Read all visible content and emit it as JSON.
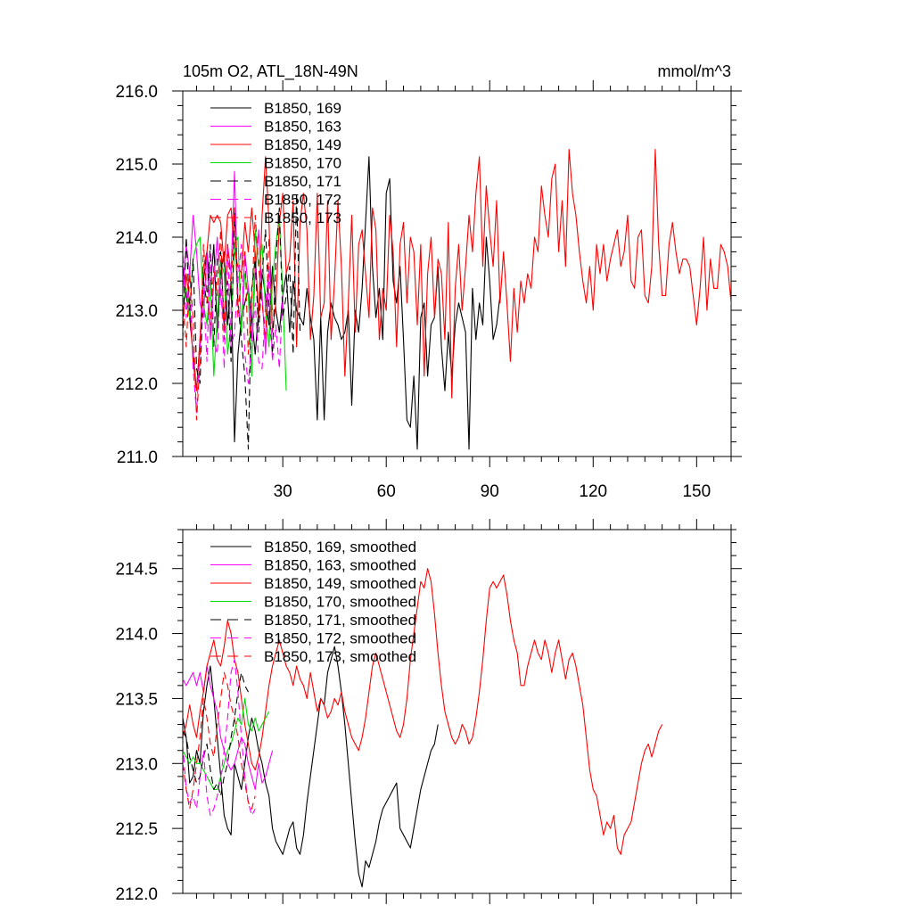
{
  "chart_data": [
    {
      "type": "line",
      "title": "105m O2, ATL_18N-49N",
      "units": "mmol/m^3",
      "xlim": [
        1,
        160
      ],
      "ylim": [
        211.0,
        216.0
      ],
      "xticks": [
        30,
        60,
        90,
        120,
        150
      ],
      "yticks": [
        211.0,
        212.0,
        213.0,
        214.0,
        215.0,
        216.0
      ],
      "yticks_decimals": 1,
      "show_xtick_labels": true,
      "series": [
        {
          "name": "B1850, 169",
          "color": "#000000",
          "dash": "",
          "x_start": 1,
          "values": [
            213.6,
            213.2,
            212.9,
            212.4,
            211.9,
            212.6,
            213.4,
            213.8,
            213.3,
            213.9,
            212.7,
            213.5,
            213.8,
            212.8,
            213.4,
            211.2,
            212.4,
            212.9,
            213.1,
            213.3,
            212.9,
            212.4,
            213.0,
            213.5,
            213.2,
            212.8,
            213.6,
            213.0,
            212.7,
            213.2,
            213.5,
            212.7,
            213.4,
            213.0,
            212.9,
            212.8,
            213.3,
            212.9,
            212.6,
            211.5,
            212.9,
            211.5,
            212.7,
            213.1,
            212.9,
            212.8,
            212.6,
            212.7,
            213.0,
            211.7,
            213.0,
            212.7,
            213.3,
            214.2,
            215.1,
            213.6,
            212.9,
            213.3,
            212.6,
            214.6,
            214.8,
            213.4,
            213.1,
            213.6,
            212.6,
            211.5,
            211.4,
            212.1,
            211.1,
            212.9,
            213.1,
            212.1,
            212.8,
            212.9,
            213.6,
            212.5,
            211.9,
            212.7,
            212.1,
            212.8,
            213.1,
            212.9,
            212.7,
            211.1,
            213.3,
            212.6,
            213.1,
            212.8,
            214.0,
            213.4,
            212.6,
            212.8,
            213.2
          ]
        },
        {
          "name": "B1850, 163",
          "color": "#ff00ff",
          "dash": "",
          "x_start": 1,
          "values": [
            213.2,
            213.9,
            213.5,
            214.3,
            213.8,
            213.1,
            212.9,
            213.8,
            212.6,
            213.4,
            214.0,
            213.2,
            212.8,
            213.9,
            213.5,
            214.9,
            213.1,
            212.7,
            213.8,
            213.3,
            212.6,
            213.5,
            214.1,
            213.2,
            212.4,
            213.6,
            213.0
          ]
        },
        {
          "name": "B1850, 149",
          "color": "#ff0000",
          "dash": "",
          "x_start": 1,
          "values": [
            212.8,
            213.5,
            213.1,
            212.3,
            211.9,
            212.6,
            213.6,
            213.8,
            214.3,
            214.2,
            214.3,
            214.2,
            213.6,
            214.3,
            214.4,
            213.8,
            213.6,
            213.5,
            214.2,
            213.8,
            214.4,
            213.8,
            212.9,
            214.3,
            215.1,
            214.2,
            212.7,
            213.1,
            214.2,
            214.6,
            213.5,
            213.7,
            214.5,
            212.5,
            214.2,
            214.6,
            214.1,
            212.6,
            213.2,
            214.6,
            212.9,
            213.1,
            214.5,
            212.6,
            213.4,
            214.5,
            213.6,
            212.1,
            213.1,
            214.3,
            212.7,
            213.9,
            214.1,
            213.5,
            212.9,
            214.4,
            214.1,
            212.6,
            213.3,
            213.0,
            214.3,
            213.8,
            212.5,
            213.9,
            214.2,
            213.1,
            214.0,
            213.8,
            212.8,
            213.9,
            212.1,
            213.5,
            214.0,
            212.9,
            213.7,
            213.5,
            212.6,
            214.2,
            211.8,
            213.3,
            213.9,
            213.0,
            213.6,
            214.3,
            213.8,
            214.6,
            215.1,
            213.6,
            214.7,
            214.1,
            213.6,
            214.5,
            213.1,
            213.8,
            213.1,
            212.3,
            213.3,
            212.7,
            213.4,
            213.1,
            213.5,
            213.3,
            214.0,
            213.8,
            214.7,
            214.3,
            214.0,
            214.8,
            215.0,
            213.8,
            214.5,
            213.6,
            215.2,
            214.6,
            214.3,
            213.8,
            213.4,
            213.1,
            213.6,
            213.0,
            213.9,
            213.5,
            213.9,
            213.4,
            213.7,
            213.9,
            214.1,
            213.6,
            213.8,
            214.3,
            213.4,
            213.3,
            214.0,
            214.1,
            213.2,
            213.1,
            213.6,
            215.2,
            213.9,
            213.2,
            213.2,
            213.9,
            214.2,
            213.8,
            213.5,
            213.7,
            213.7,
            213.6,
            213.2,
            212.8,
            213.3,
            214.0,
            213.0,
            213.7,
            213.3,
            213.3,
            213.9,
            213.8,
            213.6,
            213.1,
            212.9,
            212.5,
            213.2
          ]
        },
        {
          "name": "B1850, 170",
          "color": "#00dd00",
          "dash": "",
          "x_start": 1,
          "values": [
            213.1,
            213.3,
            212.9,
            213.7,
            213.9,
            214.0,
            213.1,
            212.8,
            213.4,
            212.1,
            212.9,
            213.7,
            213.5,
            212.4,
            212.8,
            213.9,
            214.0,
            212.7,
            213.5,
            213.2,
            212.1,
            214.1,
            213.6,
            213.9,
            213.0,
            212.5,
            213.4,
            213.9,
            214.3,
            213.2,
            211.9
          ]
        },
        {
          "name": "B1850, 171",
          "color": "#000000",
          "dash": "8,5",
          "x_start": 1,
          "values": [
            212.6,
            214.0,
            213.0,
            213.7,
            212.2,
            212.0,
            213.4,
            213.1,
            213.9,
            212.5,
            213.7,
            213.8,
            212.8,
            213.4,
            212.3,
            214.4,
            213.1,
            212.6,
            212.1,
            211.1,
            213.3,
            213.7,
            212.7,
            213.5,
            214.1,
            213.0,
            212.4,
            213.7,
            214.4,
            212.9,
            213.2,
            213.6,
            212.4,
            214.6,
            212.7
          ]
        },
        {
          "name": "B1850, 172",
          "color": "#ff00ff",
          "dash": "8,5",
          "x_start": 1,
          "values": [
            213.9,
            212.9,
            213.6,
            212.2,
            211.6,
            212.5,
            213.3,
            212.3,
            213.8,
            212.6,
            212.4,
            213.5,
            212.2,
            213.9,
            212.5,
            212.7,
            213.4,
            213.9,
            212.4,
            212.0,
            212.6,
            213.1,
            212.3,
            212.2,
            213.1,
            213.5,
            212.3,
            212.8,
            212.2,
            213.2
          ]
        },
        {
          "name": "B1850, 173",
          "color": "#ff0000",
          "dash": "8,5",
          "x_start": 1,
          "values": [
            213.2,
            212.5,
            213.5,
            212.9,
            211.5,
            212.3,
            213.9,
            213.2,
            212.8,
            213.6,
            213.2,
            214.1,
            212.6,
            213.9,
            213.3,
            214.4,
            212.9,
            213.5,
            213.8,
            212.4,
            213.1,
            214.3,
            213.6,
            213.1,
            212.6,
            214.0
          ]
        }
      ]
    },
    {
      "type": "line",
      "title": "",
      "units": "",
      "xlim": [
        1,
        160
      ],
      "ylim": [
        212.0,
        214.8
      ],
      "xticks": [
        30,
        60,
        90,
        120,
        150
      ],
      "yticks": [
        212.0,
        212.5,
        213.0,
        213.5,
        214.0,
        214.5
      ],
      "yticks_decimals": 1,
      "show_xtick_labels": false,
      "series": [
        {
          "name": "B1850, 169, smoothed",
          "color": "#000000",
          "dash": "",
          "x_start": 1,
          "values": [
            213.35,
            213.2,
            212.85,
            212.9,
            213.1,
            213.0,
            213.4,
            213.6,
            213.75,
            213.5,
            213.2,
            212.9,
            212.6,
            212.5,
            212.45,
            213.0,
            212.9,
            212.8,
            213.0,
            213.2,
            213.35,
            213.25,
            213.1,
            213.0,
            212.85,
            212.75,
            212.5,
            212.4,
            212.35,
            212.3,
            212.4,
            212.5,
            212.55,
            212.35,
            212.3,
            212.45,
            212.7,
            212.9,
            213.1,
            213.3,
            213.5,
            213.45,
            213.7,
            213.8,
            213.9,
            213.75,
            213.55,
            213.3,
            213.0,
            212.7,
            212.4,
            212.15,
            212.05,
            212.25,
            212.2,
            212.3,
            212.4,
            212.55,
            212.65,
            212.7,
            212.75,
            212.8,
            212.85,
            212.5,
            212.45,
            212.4,
            212.35,
            212.5,
            212.65,
            212.8,
            212.9,
            213.0,
            213.1,
            213.15,
            213.3
          ]
        },
        {
          "name": "B1850, 163, smoothed",
          "color": "#ff00ff",
          "dash": "",
          "x_start": 1,
          "values": [
            213.65,
            213.6,
            213.65,
            213.7,
            213.6,
            213.7,
            213.55,
            213.75,
            213.6,
            213.5,
            213.4,
            213.2,
            213.1,
            213.0,
            212.95,
            213.0,
            213.1,
            213.2,
            213.15,
            213.0,
            212.9,
            212.8,
            213.0,
            212.85,
            212.9,
            213.0,
            213.1
          ]
        },
        {
          "name": "B1850, 149, smoothed",
          "color": "#ff0000",
          "dash": "",
          "x_start": 1,
          "values": [
            213.2,
            213.3,
            213.45,
            213.3,
            213.2,
            213.4,
            213.55,
            213.75,
            213.85,
            213.95,
            213.8,
            213.75,
            213.9,
            214.1,
            214.0,
            213.8,
            213.7,
            213.5,
            213.3,
            213.15,
            213.0,
            212.95,
            213.05,
            213.2,
            213.4,
            213.6,
            213.75,
            213.85,
            213.95,
            213.85,
            213.75,
            213.7,
            213.6,
            213.75,
            213.65,
            213.6,
            213.5,
            213.7,
            213.55,
            213.4,
            213.5,
            213.45,
            213.35,
            213.4,
            213.5,
            213.45,
            213.55,
            213.4,
            213.3,
            213.2,
            213.15,
            213.1,
            213.2,
            213.35,
            213.55,
            213.75,
            213.85,
            213.75,
            213.65,
            213.55,
            213.45,
            213.35,
            213.25,
            213.2,
            213.3,
            213.5,
            213.8,
            214.0,
            214.2,
            214.4,
            214.35,
            214.5,
            214.4,
            214.15,
            213.85,
            213.6,
            213.4,
            213.3,
            213.2,
            213.15,
            213.2,
            213.3,
            213.25,
            213.15,
            213.2,
            213.35,
            213.55,
            213.8,
            214.1,
            214.35,
            214.4,
            214.35,
            214.4,
            214.45,
            214.3,
            214.1,
            213.95,
            213.85,
            213.6,
            213.6,
            213.75,
            213.85,
            213.95,
            213.85,
            213.8,
            213.95,
            213.85,
            213.7,
            213.85,
            213.95,
            213.8,
            213.65,
            213.8,
            213.85,
            213.75,
            213.6,
            213.45,
            213.2,
            212.95,
            212.8,
            212.75,
            212.6,
            212.45,
            212.55,
            212.5,
            212.6,
            212.35,
            212.3,
            212.45,
            212.5,
            212.55,
            212.7,
            212.85,
            213.0,
            213.1,
            213.15,
            213.05,
            213.15,
            213.25,
            213.3
          ]
        },
        {
          "name": "B1850, 170, smoothed",
          "color": "#00dd00",
          "dash": "",
          "x_start": 1,
          "values": [
            213.1,
            213.05,
            213.0,
            213.05,
            213.0,
            213.0,
            212.95,
            212.9,
            212.85,
            212.8,
            212.8,
            212.9,
            213.0,
            213.1,
            213.15,
            213.25,
            213.35,
            213.3,
            213.5,
            213.3,
            213.25,
            213.35,
            213.25,
            213.3,
            213.35,
            213.4
          ]
        },
        {
          "name": "B1850, 171, smoothed",
          "color": "#000000",
          "dash": "8,5",
          "x_start": 1,
          "values": [
            213.25,
            213.2,
            213.05,
            212.95,
            212.85,
            212.9,
            213.05,
            213.15,
            212.95,
            212.8,
            212.85,
            212.75,
            212.9,
            213.0,
            213.2,
            213.35,
            213.55,
            213.7,
            213.6,
            213.55
          ]
        },
        {
          "name": "B1850, 172, smoothed",
          "color": "#ff00ff",
          "dash": "8,5",
          "x_start": 1,
          "values": [
            213.15,
            212.8,
            212.7,
            212.75,
            212.65,
            212.9,
            213.1,
            212.75,
            212.6,
            212.65,
            212.75,
            212.9,
            213.1,
            213.35,
            213.7,
            213.8,
            213.55,
            213.2,
            212.9,
            212.7,
            212.6,
            212.65
          ]
        },
        {
          "name": "B1850, 173, smoothed",
          "color": "#ff0000",
          "dash": "8,5",
          "x_start": 1,
          "values": [
            213.0,
            212.8,
            212.65,
            212.8,
            213.0,
            213.2,
            213.5,
            213.35,
            213.15,
            213.05,
            213.3,
            213.5,
            213.7,
            213.6,
            213.45,
            213.35,
            213.2,
            213.0,
            212.85,
            212.7,
            212.65,
            212.75
          ]
        }
      ]
    }
  ]
}
